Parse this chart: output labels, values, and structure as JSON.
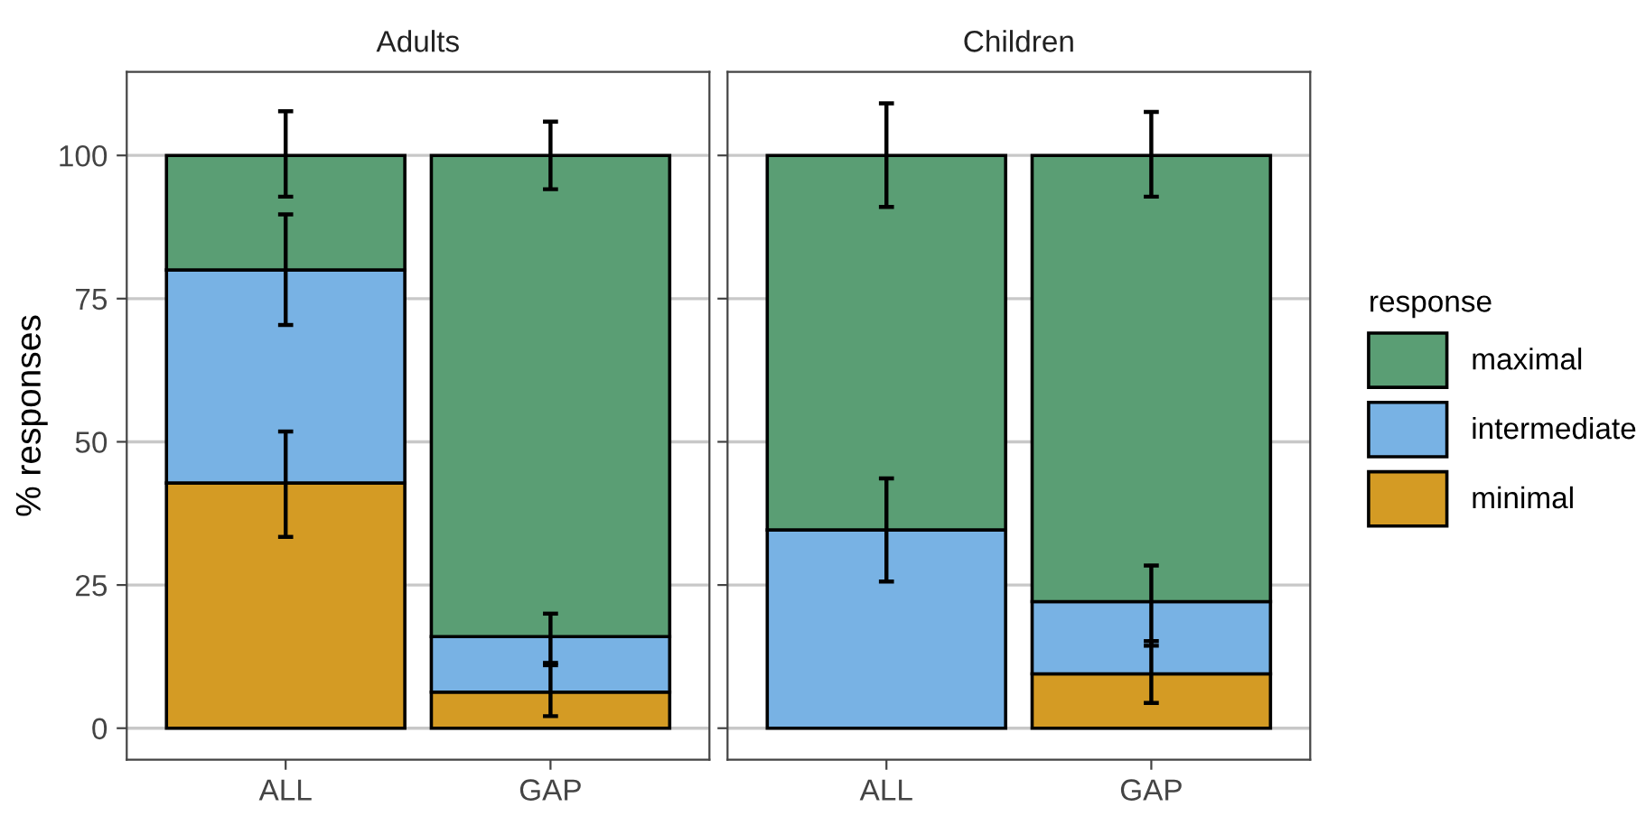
{
  "chart_data": [
    {
      "type": "bar",
      "title": "Adults",
      "ylabel": "% responses",
      "categories": [
        "ALL",
        "GAP"
      ],
      "stacked": true,
      "ylim": [
        -5.5,
        114.6
      ],
      "yticks": [
        0,
        25,
        50,
        75,
        100
      ],
      "grid": "y",
      "legend": "right",
      "legend_title": "response",
      "series": [
        {
          "name": "minimal",
          "color": "#d49b24",
          "values": [
            42.8,
            6.3
          ],
          "errors": [
            [
              33.4,
              51.8
            ],
            [
              2.1,
              11.4
            ]
          ]
        },
        {
          "name": "intermediate",
          "color": "#78b2e4",
          "values": [
            37.2,
            9.7
          ],
          "errors": [
            [
              70.4,
              89.7
            ],
            [
              11.0,
              20.0
            ]
          ]
        },
        {
          "name": "maximal",
          "color": "#5a9e74",
          "values": [
            20.0,
            84.0
          ],
          "errors": [
            [
              92.8,
              107.7
            ],
            [
              94.1,
              105.9
            ]
          ]
        }
      ]
    },
    {
      "type": "bar",
      "title": "Children",
      "categories": [
        "ALL",
        "GAP"
      ],
      "stacked": true,
      "ylim": [
        -5.5,
        114.6
      ],
      "yticks": [
        0,
        25,
        50,
        75,
        100
      ],
      "grid": "y",
      "tick_labels": "x",
      "series": [
        {
          "name": "minimal",
          "color": "#d49b24",
          "values": [
            0,
            9.5
          ],
          "errors": [
            null,
            [
              4.4,
              15.2
            ]
          ]
        },
        {
          "name": "intermediate",
          "color": "#78b2e4",
          "values": [
            34.6,
            12.6
          ],
          "errors": [
            [
              25.6,
              43.6
            ],
            [
              14.4,
              28.4
            ]
          ]
        },
        {
          "name": "maximal",
          "color": "#5a9e74",
          "values": [
            65.4,
            77.9
          ],
          "errors": [
            [
              91.0,
              109.1
            ],
            [
              92.8,
              107.6
            ]
          ]
        }
      ]
    }
  ]
}
